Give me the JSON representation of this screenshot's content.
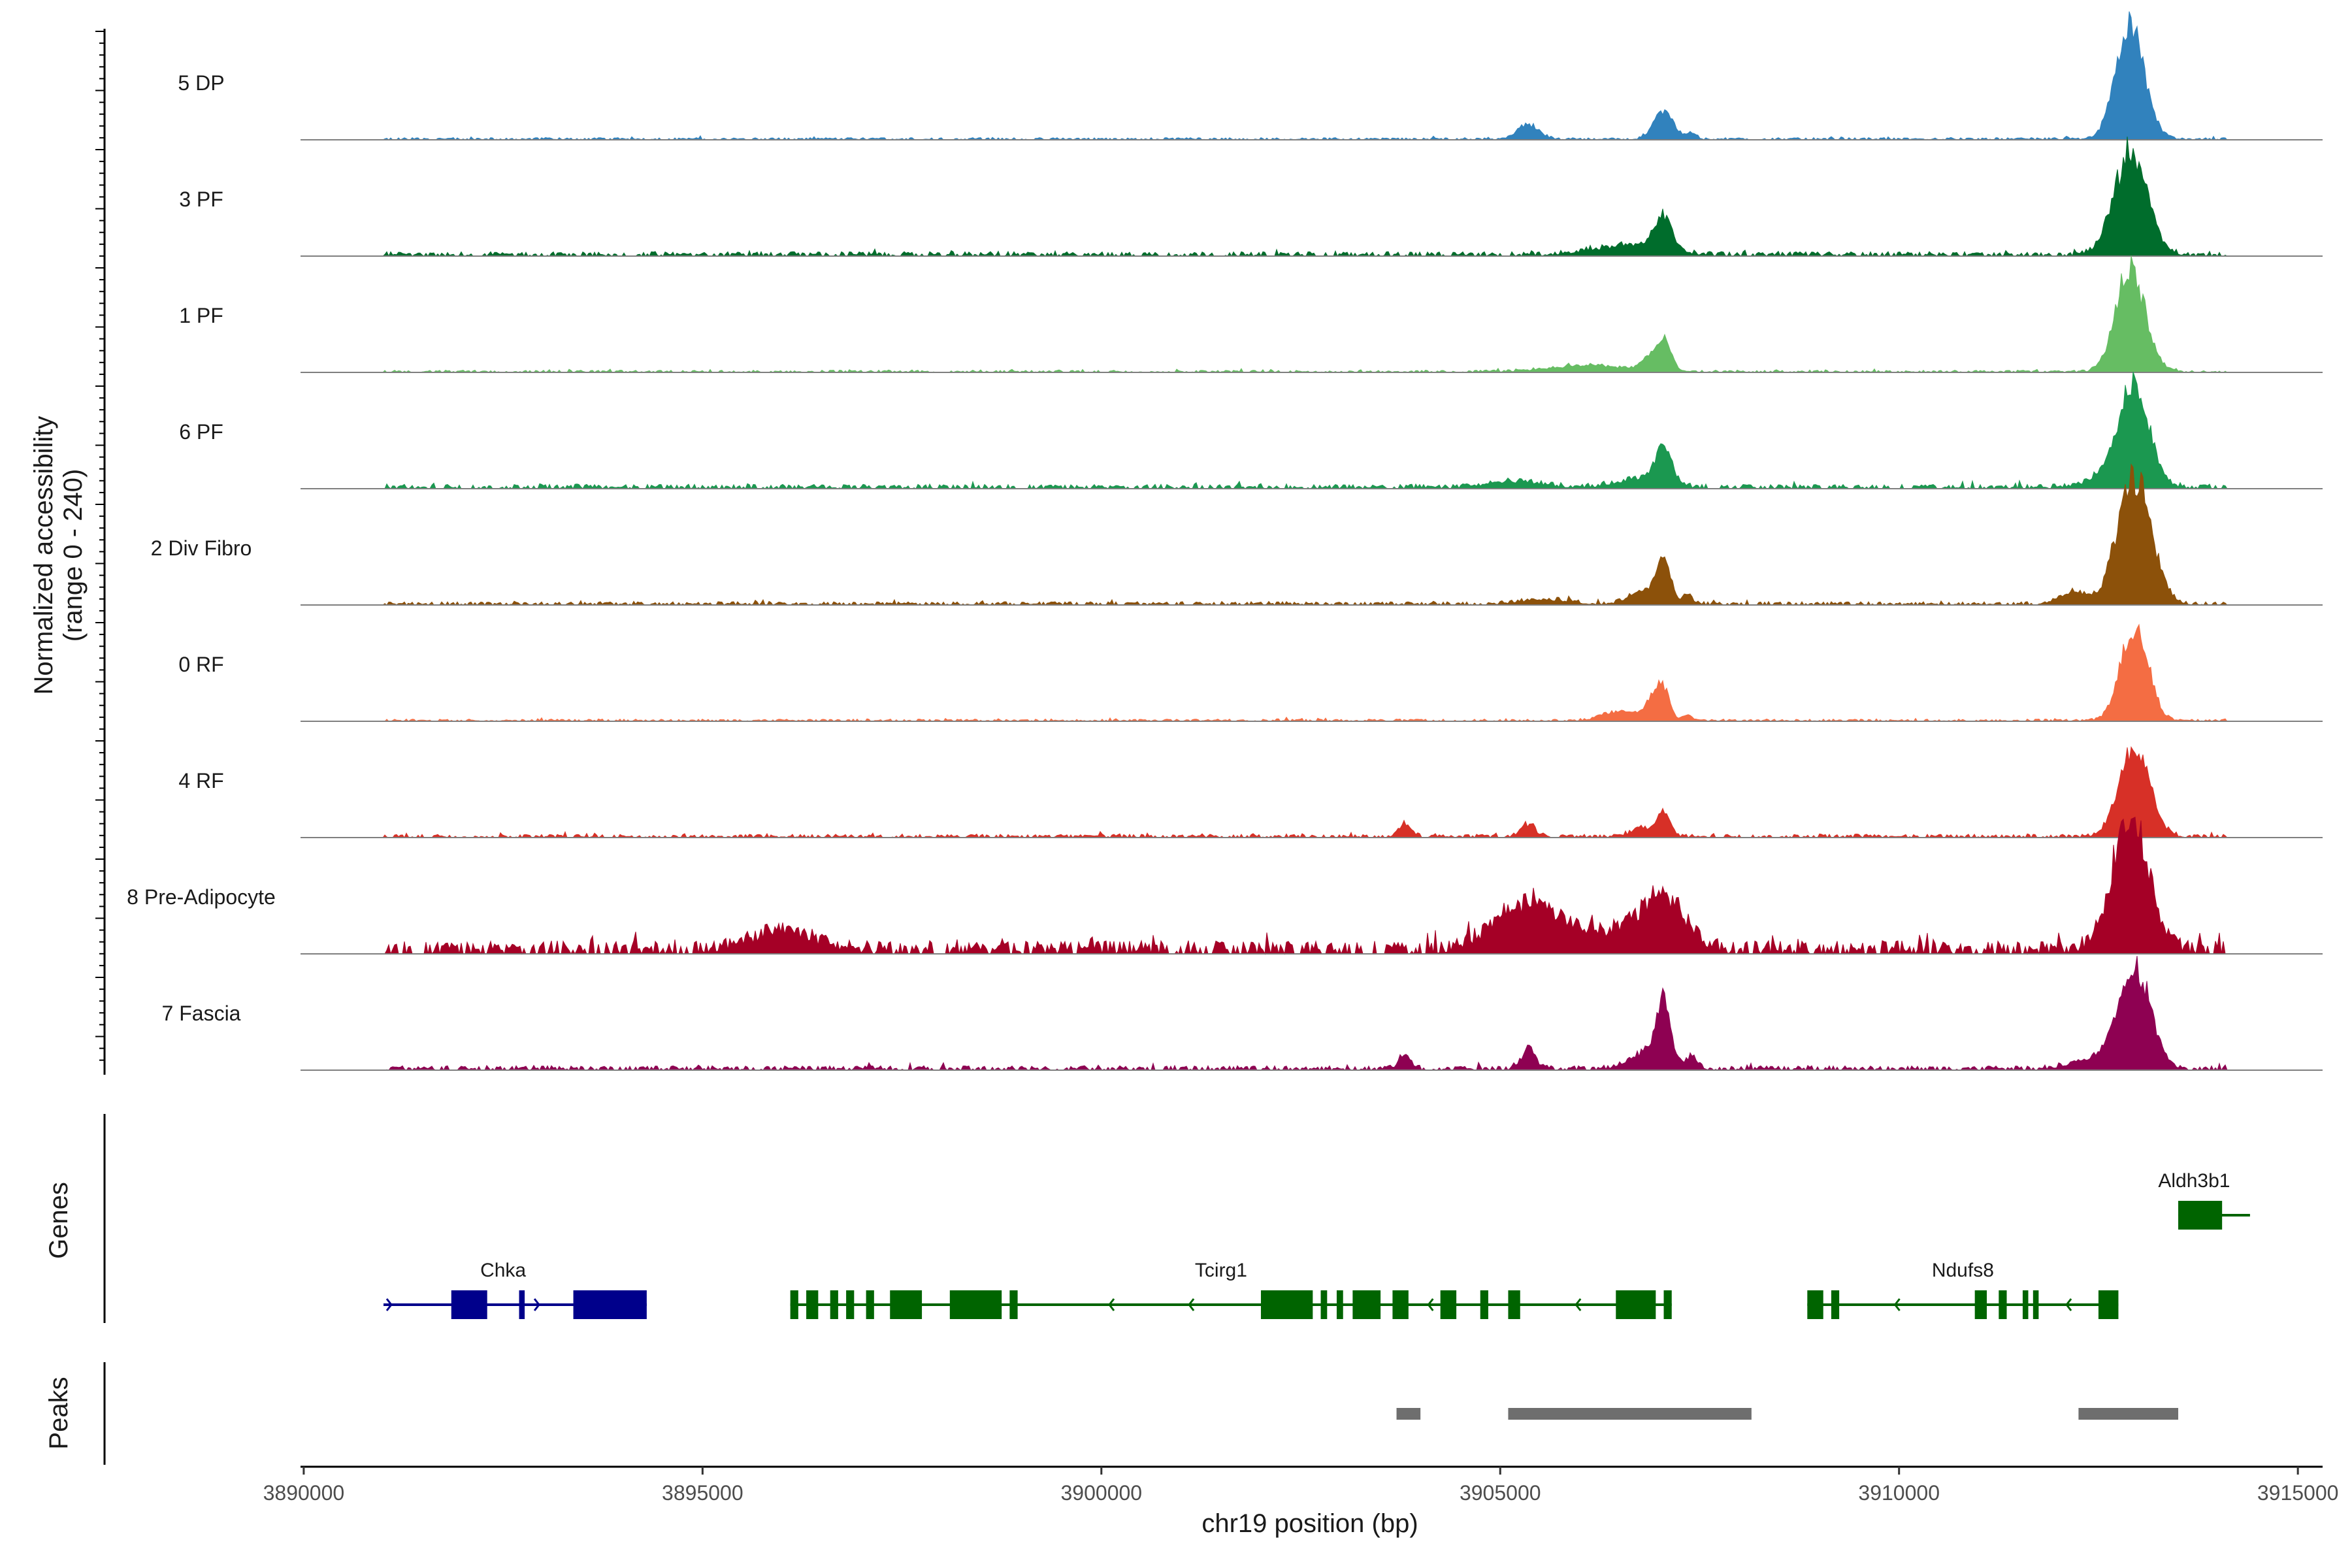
{
  "chart_data": {
    "type": "area",
    "chromosome": "chr19",
    "x_axis": {
      "title": "chr19 position (bp)",
      "range": [
        3889960,
        3915310
      ],
      "ticks": [
        3890000,
        3895000,
        3900000,
        3905000,
        3910000,
        3915000
      ],
      "tick_labels": [
        "3890000",
        "3895000",
        "3900000",
        "3905000",
        "3910000",
        "3915000"
      ]
    },
    "y_axis": {
      "title_line1": "Normalized accessibility",
      "title_line2": "(range 0 - 240)",
      "range": [
        0,
        240
      ]
    },
    "tracks": [
      {
        "name": "5 DP",
        "color": "#3182bd",
        "noise": {
          "level": 2,
          "start": 3891000,
          "end": 3914100
        },
        "peaks": [
          [
            3905350,
            140,
            22
          ],
          [
            3907050,
            120,
            45
          ],
          [
            3907400,
            60,
            10
          ],
          [
            3912900,
            180,
            175
          ]
        ]
      },
      {
        "name": "3 PF",
        "color": "#006d2c",
        "noise": {
          "level": 4,
          "start": 3891000,
          "end": 3914100
        },
        "peaks": [
          [
            3906600,
            450,
            15
          ],
          [
            3907050,
            110,
            52
          ],
          [
            3912900,
            210,
            160
          ]
        ]
      },
      {
        "name": "1 PF",
        "color": "#66bd63",
        "noise": {
          "level": 2,
          "start": 3891000,
          "end": 3914100
        },
        "peaks": [
          [
            3906100,
            500,
            10
          ],
          [
            3906850,
            90,
            18
          ],
          [
            3907050,
            90,
            48
          ],
          [
            3912900,
            180,
            165
          ]
        ]
      },
      {
        "name": "6 PF",
        "color": "#1b9850",
        "noise": {
          "level": 4,
          "start": 3891000,
          "end": 3914100
        },
        "peaks": [
          [
            3905200,
            350,
            10
          ],
          [
            3906750,
            300,
            15
          ],
          [
            3907050,
            100,
            55
          ],
          [
            3912700,
            300,
            20
          ],
          [
            3912950,
            190,
            150
          ]
        ]
      },
      {
        "name": "2 Div Fibro",
        "color": "#8c510a",
        "noise": {
          "level": 3,
          "start": 3891000,
          "end": 3914100
        },
        "peaks": [
          [
            3905550,
            300,
            8
          ],
          [
            3906800,
            180,
            20
          ],
          [
            3907050,
            90,
            65
          ],
          [
            3907350,
            60,
            15
          ],
          [
            3912200,
            160,
            20
          ],
          [
            3912950,
            210,
            200
          ]
        ]
      },
      {
        "name": "0 RF",
        "color": "#f46d43",
        "noise": {
          "level": 2,
          "start": 3891000,
          "end": 3914100
        },
        "peaks": [
          [
            3906500,
            220,
            15
          ],
          [
            3906900,
            90,
            30
          ],
          [
            3907050,
            80,
            48
          ],
          [
            3907350,
            60,
            10
          ],
          [
            3912950,
            170,
            150
          ]
        ]
      },
      {
        "name": "4 RF",
        "color": "#d73027",
        "noise": {
          "level": 3,
          "start": 3891000,
          "end": 3914100
        },
        "peaks": [
          [
            3903800,
            80,
            20
          ],
          [
            3905350,
            90,
            20
          ],
          [
            3906800,
            110,
            15
          ],
          [
            3907050,
            80,
            40
          ],
          [
            3912950,
            190,
            140
          ]
        ]
      },
      {
        "name": "8 Pre-Adipocyte",
        "color": "#a50026",
        "noise": {
          "level": 12,
          "start": 3891000,
          "end": 3914100
        },
        "peaks": [
          [
            3896000,
            400,
            30
          ],
          [
            3905350,
            400,
            75
          ],
          [
            3906500,
            500,
            28
          ],
          [
            3907050,
            260,
            75
          ],
          [
            3912900,
            230,
            210
          ]
        ]
      },
      {
        "name": "7 Fascia",
        "color": "#8e0152",
        "noise": {
          "level": 4,
          "start": 3891000,
          "end": 3914100
        },
        "peaks": [
          [
            3903800,
            70,
            25
          ],
          [
            3905350,
            90,
            30
          ],
          [
            3906800,
            200,
            25
          ],
          [
            3907050,
            90,
            100
          ],
          [
            3907400,
            80,
            20
          ],
          [
            3912400,
            250,
            15
          ],
          [
            3912950,
            200,
            160
          ]
        ]
      }
    ],
    "genes": [
      {
        "name": "Chka",
        "strand": "+",
        "color": "#00008b",
        "start": 3891000,
        "end": 3894300,
        "row": 2,
        "exons": [
          [
            3891850,
            3892300
          ],
          [
            3892700,
            3892770
          ],
          [
            3893380,
            3894300
          ]
        ],
        "arrows": [
          3892950
        ]
      },
      {
        "name": "Tcirg1",
        "strand": "-",
        "color": "#006400",
        "start": 3896100,
        "end": 3907150,
        "row": 2,
        "exons": [
          [
            3896100,
            3896200
          ],
          [
            3896300,
            3896450
          ],
          [
            3896600,
            3896700
          ],
          [
            3896800,
            3896900
          ],
          [
            3897050,
            3897150
          ],
          [
            3897350,
            3897750
          ],
          [
            3898100,
            3898750
          ],
          [
            3898850,
            3898950
          ],
          [
            3902000,
            3902650
          ],
          [
            3902750,
            3902830
          ],
          [
            3902950,
            3903030
          ],
          [
            3903150,
            3903500
          ],
          [
            3903650,
            3903850
          ],
          [
            3904250,
            3904450
          ],
          [
            3904750,
            3904850
          ],
          [
            3905100,
            3905250
          ],
          [
            3906450,
            3906950
          ],
          [
            3907050,
            3907150
          ]
        ],
        "arrows": [
          3900100,
          3901100,
          3904100,
          3905950
        ]
      },
      {
        "name": "Ndufs8",
        "strand": "-",
        "color": "#006400",
        "start": 3908850,
        "end": 3912750,
        "row": 2,
        "exons": [
          [
            3908850,
            3909050
          ],
          [
            3909150,
            3909250
          ],
          [
            3910950,
            3911100
          ],
          [
            3911250,
            3911350
          ],
          [
            3911550,
            3911620
          ],
          [
            3911680,
            3911750
          ],
          [
            3912500,
            3912750
          ]
        ],
        "arrows": [
          3909950,
          3912100
        ]
      },
      {
        "name": "Aldh3b1",
        "strand": "+",
        "color": "#006400",
        "start": 3913500,
        "end": 3914400,
        "row": 1,
        "exons": [
          [
            3913500,
            3914050
          ]
        ],
        "arrows": []
      }
    ],
    "peaks": [
      {
        "start": 3903700,
        "end": 3904000
      },
      {
        "start": 3905100,
        "end": 3908150
      },
      {
        "start": 3912250,
        "end": 3913500
      }
    ],
    "panel_titles": {
      "genes": "Genes",
      "peaks": "Peaks"
    }
  }
}
